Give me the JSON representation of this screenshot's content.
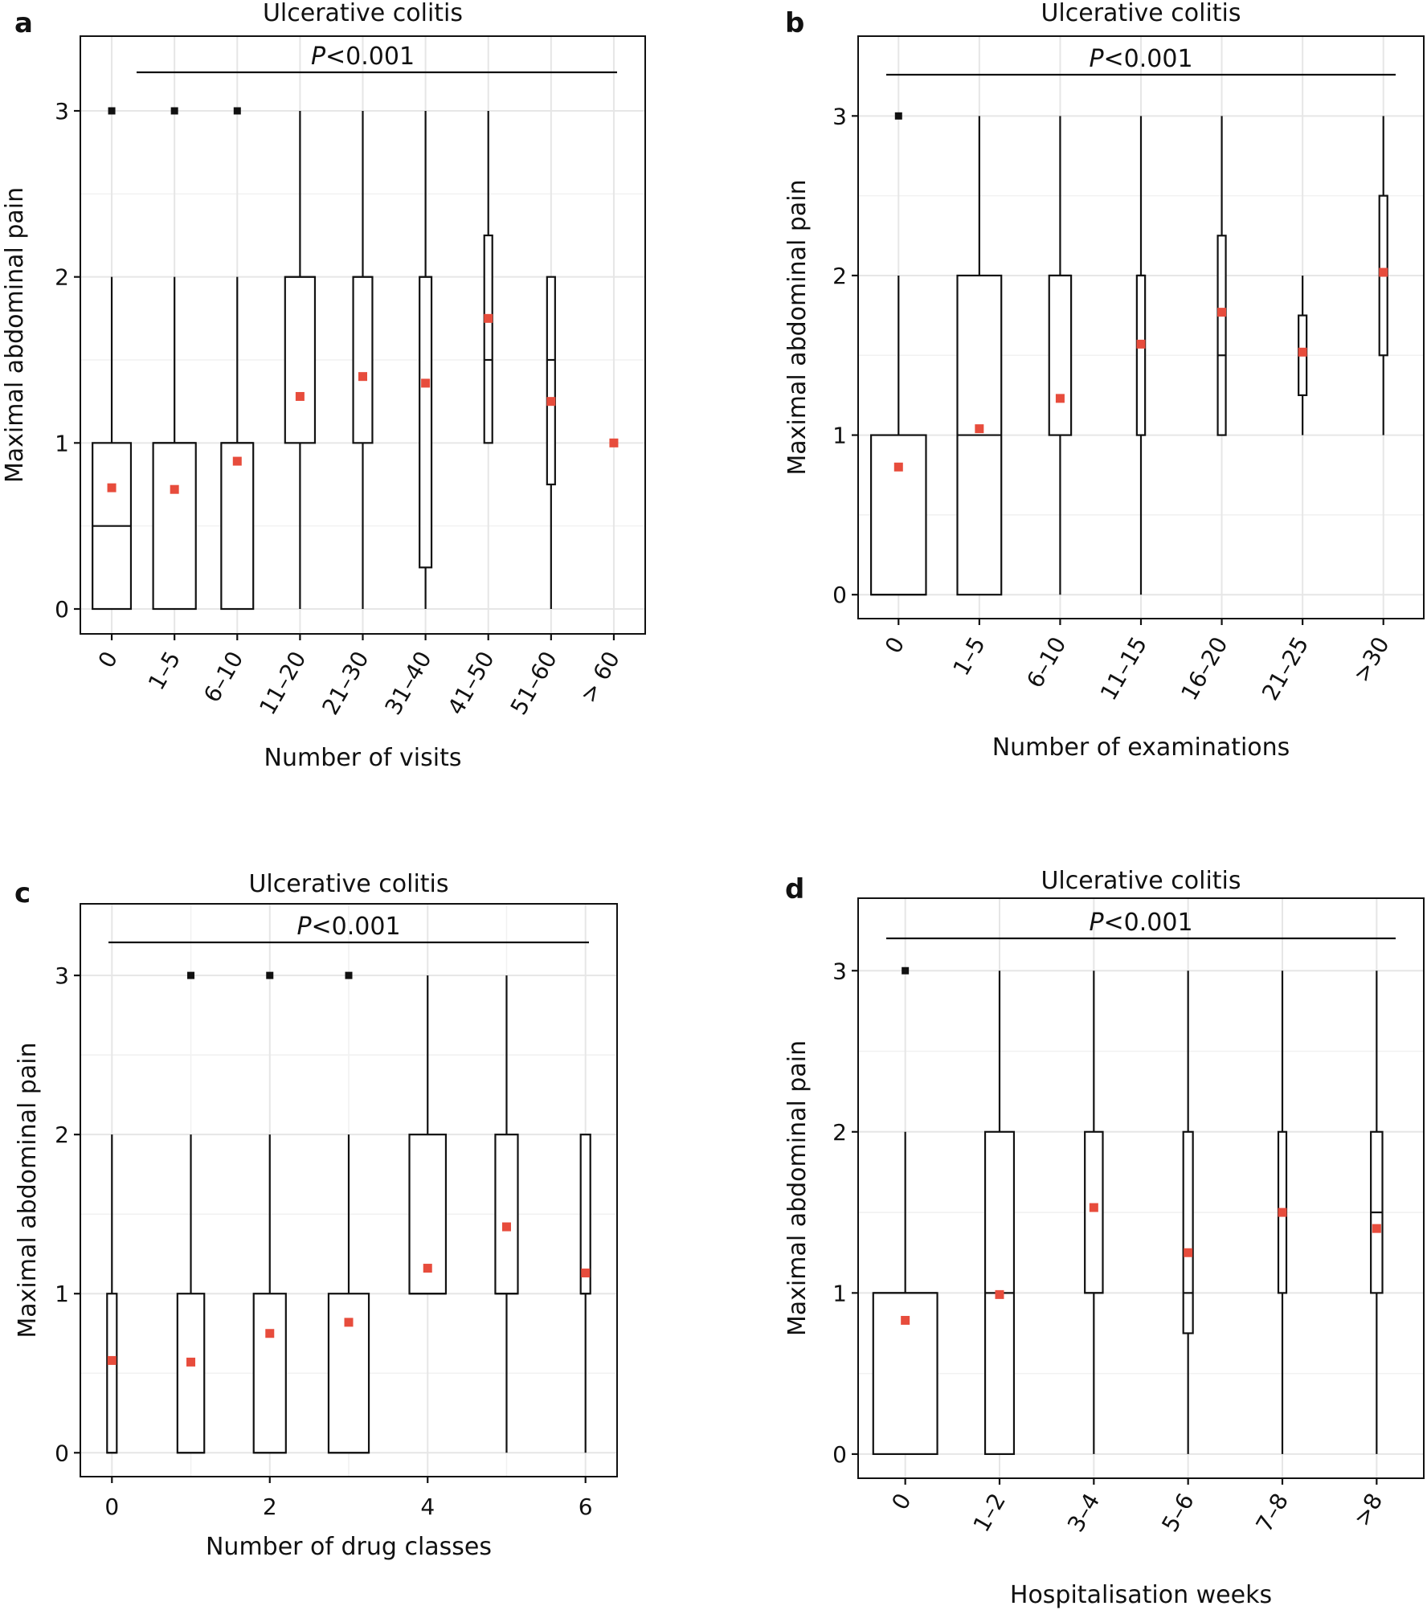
{
  "figure": {
    "panels": [
      {
        "letter": "a",
        "title": "Ulcerative colitis",
        "p_value": "<0.001",
        "xlabel": "Number of visits",
        "ylabel": "Maximal abdominal pain"
      },
      {
        "letter": "b",
        "title": "Ulcerative colitis",
        "p_value": "<0.001",
        "xlabel": "Number of  examinations",
        "ylabel": "Maximal abdominal pain"
      },
      {
        "letter": "c",
        "title": "Ulcerative colitis",
        "p_value": "<0.001",
        "xlabel": "Number of drug classes",
        "ylabel": "Maximal abdominal pain"
      },
      {
        "letter": "d",
        "title": "Ulcerative colitis",
        "p_value": "<0.001",
        "xlabel": "Hospitalisation weeks",
        "ylabel": "Maximal abdominal pain"
      }
    ]
  },
  "colors": {
    "mean_marker": "#e74c3c",
    "box_stroke": "#111111",
    "grid": "#e6e6e6"
  },
  "chart_data": [
    {
      "type": "boxplot",
      "panel": "a",
      "title": "Ulcerative colitis",
      "annotation": "P<0.001",
      "xlabel": "Number of visits",
      "ylabel": "Maximal abdominal pain",
      "ylim": [
        -0.15,
        3.45
      ],
      "yticks": [
        0,
        1,
        2,
        3
      ],
      "tick_rotation": -60,
      "categories": [
        "0",
        "1–5",
        "6–10",
        "11–20",
        "21–30",
        "31–40",
        "41–50",
        "51–60",
        "> 60"
      ],
      "boxes": [
        {
          "q1": 0,
          "median": 0.5,
          "q3": 1,
          "whisker_low": 0,
          "whisker_high": 2,
          "mean": 0.73,
          "outliers": [
            3
          ],
          "rel_width": 0.9
        },
        {
          "q1": 0,
          "median": 1,
          "q3": 1,
          "whisker_low": 0,
          "whisker_high": 2,
          "mean": 0.72,
          "outliers": [
            3
          ],
          "rel_width": 1.0
        },
        {
          "q1": 0,
          "median": 1,
          "q3": 1,
          "whisker_low": 0,
          "whisker_high": 2,
          "mean": 0.89,
          "outliers": [
            3
          ],
          "rel_width": 0.75
        },
        {
          "q1": 1,
          "median": 2,
          "q3": 2,
          "whisker_low": 0,
          "whisker_high": 3,
          "mean": 1.28,
          "outliers": [],
          "rel_width": 0.7
        },
        {
          "q1": 1,
          "median": 2,
          "q3": 2,
          "whisker_low": 0,
          "whisker_high": 3,
          "mean": 1.4,
          "outliers": [],
          "rel_width": 0.45
        },
        {
          "q1": 0.25,
          "median": 2,
          "q3": 2,
          "whisker_low": 0,
          "whisker_high": 3,
          "mean": 1.36,
          "outliers": [],
          "rel_width": 0.28
        },
        {
          "q1": 1,
          "median": 1.5,
          "q3": 2.25,
          "whisker_low": 1,
          "whisker_high": 3,
          "mean": 1.75,
          "outliers": [],
          "rel_width": 0.14
        },
        {
          "q1": 0.75,
          "median": 1.5,
          "q3": 2,
          "whisker_low": 0,
          "whisker_high": 2,
          "mean": 1.25,
          "outliers": [],
          "rel_width": 0.14
        },
        {
          "q1": 1,
          "median": 1,
          "q3": 1,
          "whisker_low": 1,
          "whisker_high": 1,
          "mean": 1.0,
          "outliers": [],
          "rel_width": 0
        }
      ]
    },
    {
      "type": "boxplot",
      "panel": "b",
      "title": "Ulcerative colitis",
      "annotation": "P<0.001",
      "xlabel": "Number of  examinations",
      "ylabel": "Maximal abdominal pain",
      "ylim": [
        -0.15,
        3.5
      ],
      "yticks": [
        0,
        1,
        2,
        3
      ],
      "tick_rotation": -60,
      "categories": [
        "0",
        "1–5",
        "6–10",
        "11–15",
        "16–20",
        "21–25",
        ">30"
      ],
      "boxes": [
        {
          "q1": 0,
          "median": 0,
          "q3": 1,
          "whisker_low": 0,
          "whisker_high": 2,
          "mean": 0.8,
          "outliers": [
            3
          ],
          "rel_width": 1.0
        },
        {
          "q1": 0,
          "median": 1,
          "q3": 2,
          "whisker_low": 0,
          "whisker_high": 3,
          "mean": 1.04,
          "outliers": [],
          "rel_width": 0.8
        },
        {
          "q1": 1,
          "median": 2,
          "q3": 2,
          "whisker_low": 0,
          "whisker_high": 3,
          "mean": 1.23,
          "outliers": [],
          "rel_width": 0.4
        },
        {
          "q1": 1,
          "median": 2,
          "q3": 2,
          "whisker_low": 0,
          "whisker_high": 3,
          "mean": 1.57,
          "outliers": [],
          "rel_width": 0.15
        },
        {
          "q1": 1,
          "median": 1.5,
          "q3": 2.25,
          "whisker_low": 1,
          "whisker_high": 3,
          "mean": 1.77,
          "outliers": [],
          "rel_width": 0.1
        },
        {
          "q1": 1.25,
          "median": 1.5,
          "q3": 1.75,
          "whisker_low": 1,
          "whisker_high": 2,
          "mean": 1.52,
          "outliers": [],
          "rel_width": 0.08
        },
        {
          "q1": 1.5,
          "median": 2,
          "q3": 2.5,
          "whisker_low": 1,
          "whisker_high": 3,
          "mean": 2.02,
          "outliers": [],
          "rel_width": 0.08
        }
      ]
    },
    {
      "type": "boxplot",
      "panel": "c",
      "title": "Ulcerative colitis",
      "annotation": "P<0.001",
      "xlabel": "Number of drug classes",
      "ylabel": "Maximal abdominal pain",
      "ylim": [
        -0.15,
        3.45
      ],
      "yticks": [
        0,
        1,
        2,
        3
      ],
      "xlim": [
        -0.4,
        6.4
      ],
      "xticks": [
        0,
        2,
        4,
        6
      ],
      "tick_rotation": 0,
      "categories": [
        "0",
        "1",
        "2",
        "3",
        "4",
        "5",
        "6"
      ],
      "boxes": [
        {
          "x": 0,
          "q1": 0,
          "median": 0,
          "q3": 1,
          "whisker_low": 0,
          "whisker_high": 2,
          "mean": 0.58,
          "outliers": [],
          "rel_width": 0.18
        },
        {
          "x": 1,
          "q1": 0,
          "median": 0,
          "q3": 1,
          "whisker_low": 0,
          "whisker_high": 2,
          "mean": 0.57,
          "outliers": [
            3
          ],
          "rel_width": 0.5
        },
        {
          "x": 2,
          "q1": 0,
          "median": 0,
          "q3": 1,
          "whisker_low": 0,
          "whisker_high": 2,
          "mean": 0.75,
          "outliers": [
            3
          ],
          "rel_width": 0.6
        },
        {
          "x": 3,
          "q1": 0,
          "median": 0,
          "q3": 1,
          "whisker_low": 0,
          "whisker_high": 2,
          "mean": 0.82,
          "outliers": [
            3
          ],
          "rel_width": 0.75
        },
        {
          "x": 4,
          "q1": 1,
          "median": 1,
          "q3": 2,
          "whisker_low": 1,
          "whisker_high": 3,
          "mean": 1.16,
          "outliers": [],
          "rel_width": 0.68
        },
        {
          "x": 5,
          "q1": 1,
          "median": 1,
          "q3": 2,
          "whisker_low": 0,
          "whisker_high": 3,
          "mean": 1.42,
          "outliers": [],
          "rel_width": 0.42
        },
        {
          "x": 6,
          "q1": 1,
          "median": 1,
          "q3": 2,
          "whisker_low": 0,
          "whisker_high": 2,
          "mean": 1.13,
          "outliers": [],
          "rel_width": 0.18
        }
      ]
    },
    {
      "type": "boxplot",
      "panel": "d",
      "title": "Ulcerative colitis",
      "annotation": "P<0.001",
      "xlabel": "Hospitalisation weeks",
      "ylabel": "Maximal abdominal pain",
      "ylim": [
        -0.15,
        3.45
      ],
      "yticks": [
        0,
        1,
        2,
        3
      ],
      "tick_rotation": -60,
      "categories": [
        "0",
        "1–2",
        "3–4",
        "5–6",
        "7–8",
        ">8"
      ],
      "boxes": [
        {
          "q1": 0,
          "median": 1,
          "q3": 1,
          "whisker_low": 0,
          "whisker_high": 2,
          "mean": 0.83,
          "outliers": [
            3
          ],
          "rel_width": 1.0
        },
        {
          "q1": 0,
          "median": 1,
          "q3": 2,
          "whisker_low": 0,
          "whisker_high": 3,
          "mean": 0.99,
          "outliers": [],
          "rel_width": 0.45
        },
        {
          "q1": 1,
          "median": 1,
          "q3": 2,
          "whisker_low": 0,
          "whisker_high": 3,
          "mean": 1.53,
          "outliers": [],
          "rel_width": 0.28
        },
        {
          "q1": 0.75,
          "median": 1,
          "q3": 2,
          "whisker_low": 0,
          "whisker_high": 3,
          "mean": 1.25,
          "outliers": [],
          "rel_width": 0.15
        },
        {
          "q1": 1,
          "median": 1.5,
          "q3": 2,
          "whisker_low": 0,
          "whisker_high": 3,
          "mean": 1.5,
          "outliers": [],
          "rel_width": 0.12
        },
        {
          "q1": 1,
          "median": 1.5,
          "q3": 2,
          "whisker_low": 0,
          "whisker_high": 3,
          "mean": 1.4,
          "outliers": [],
          "rel_width": 0.18
        }
      ]
    }
  ]
}
